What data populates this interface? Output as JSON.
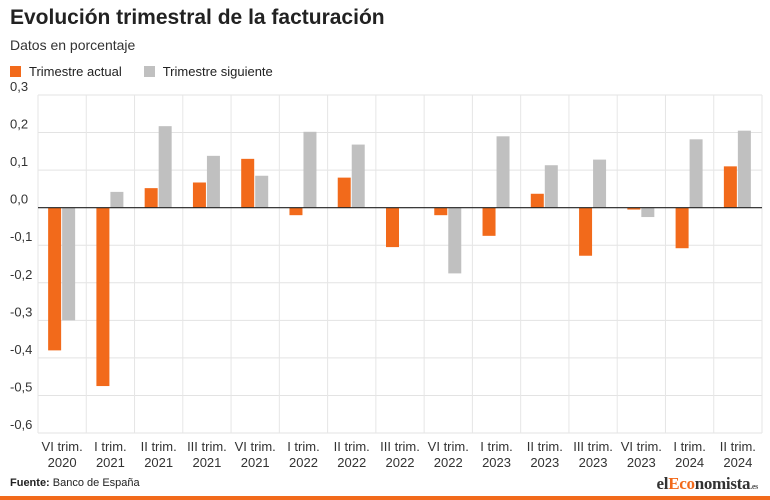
{
  "header": {
    "title": "Evolución trimestral de la facturación",
    "subtitle": "Datos en porcentaje"
  },
  "legend": [
    {
      "label": "Trimestre actual",
      "color": "#f26a1b"
    },
    {
      "label": "Trimestre siguiente",
      "color": "#c0c0c0"
    }
  ],
  "footer": {
    "source_label": "Fuente:",
    "source_text": "Banco de España",
    "brand_pre": "el",
    "brand_accent": "Eco",
    "brand_post": "nomista",
    "brand_domain": ".es"
  },
  "chart_data": {
    "type": "bar",
    "categories": [
      [
        "VI trim.",
        "2020"
      ],
      [
        "I trim.",
        "2021"
      ],
      [
        "II trim.",
        "2021"
      ],
      [
        "III trim.",
        "2021"
      ],
      [
        "VI trim.",
        "2021"
      ],
      [
        "I trim.",
        "2022"
      ],
      [
        "II trim.",
        "2022"
      ],
      [
        "III trim.",
        "2022"
      ],
      [
        "VI trim.",
        "2022"
      ],
      [
        "I trim.",
        "2023"
      ],
      [
        "II trim.",
        "2023"
      ],
      [
        "III trim.",
        "2023"
      ],
      [
        "VI trim.",
        "2023"
      ],
      [
        "I trim.",
        "2024"
      ],
      [
        "II trim.",
        "2024"
      ]
    ],
    "series": [
      {
        "name": "Trimestre actual",
        "color": "#f26a1b",
        "values": [
          -0.38,
          -0.475,
          0.052,
          0.067,
          0.13,
          -0.02,
          0.08,
          -0.105,
          -0.02,
          -0.075,
          0.037,
          -0.128,
          -0.005,
          -0.108,
          0.11
        ]
      },
      {
        "name": "Trimestre siguiente",
        "color": "#c0c0c0",
        "values": [
          -0.3,
          0.042,
          0.217,
          0.138,
          0.085,
          0.202,
          0.168,
          0.0,
          -0.175,
          0.19,
          0.113,
          0.128,
          -0.025,
          0.182,
          0.205
        ]
      }
    ],
    "yticks": [
      0.3,
      0.2,
      0.1,
      0.0,
      -0.1,
      -0.2,
      -0.3,
      -0.4,
      -0.5,
      -0.6
    ],
    "ytick_labels": [
      "0,3",
      "0,2",
      "0,1",
      "0,0",
      "-0,1",
      "-0,2",
      "-0,3",
      "-0,4",
      "-0,5",
      "-0,6"
    ],
    "ylim": [
      -0.6,
      0.3
    ],
    "grid": true,
    "legend_position": "top-left"
  }
}
